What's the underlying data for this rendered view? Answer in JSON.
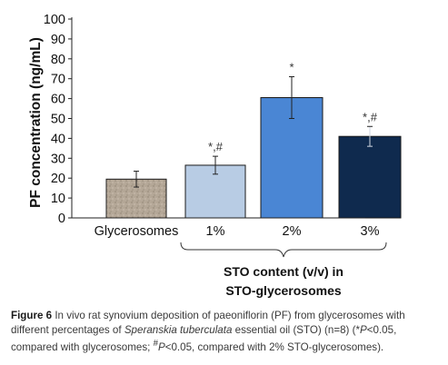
{
  "chart_data": {
    "type": "bar",
    "ylabel": "PF concentration (ng/mL)",
    "ylim": [
      0,
      100
    ],
    "yticks": [
      0,
      10,
      20,
      30,
      40,
      50,
      60,
      70,
      80,
      90,
      100
    ],
    "categories": [
      "Glycerosomes",
      "1%",
      "2%",
      "3%"
    ],
    "values": [
      19.5,
      26.5,
      60.5,
      41
    ],
    "errors": [
      4,
      4.5,
      10.5,
      5
    ],
    "annotations": [
      "",
      "*,#",
      "*",
      "*,#"
    ],
    "colors": [
      "#b5a898",
      "#b8cce4",
      "#4a86d4",
      "#0f2a4e"
    ],
    "group_label_line1": "STO content (v/v) in",
    "group_label_line2": "STO-glycerosomes",
    "grid": false
  },
  "caption": {
    "label": "Figure 6",
    "part1": " In vivo rat synovium deposition of paeoniflorin (PF) from glycerosomes with different percentages of ",
    "species": "Speranskia tuberculata",
    "part2": " essential oil (STO) (n=8) (*",
    "p1": "P",
    "part3": "<0.05, compared with glycerosomes; ",
    "hash": "#",
    "p2": "P",
    "part4": "<0.05, compared with 2% STO-glycerosomes)."
  }
}
